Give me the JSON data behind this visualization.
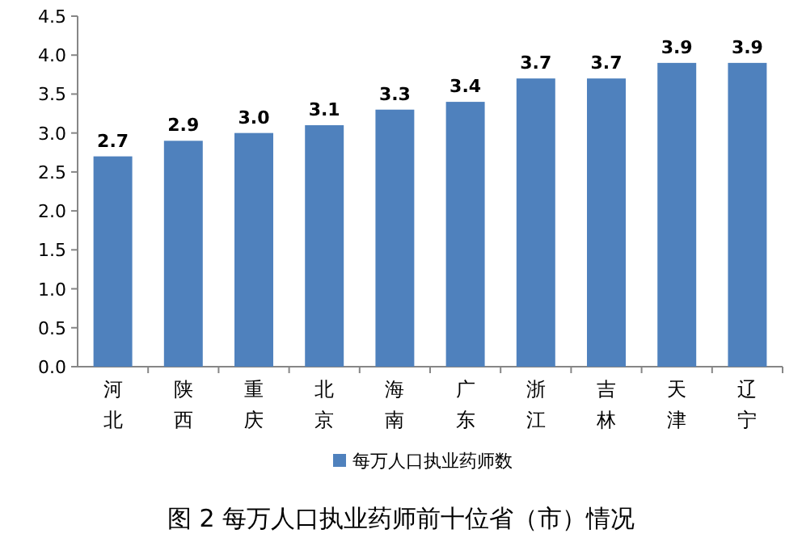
{
  "chart_data": {
    "type": "bar",
    "title": "图 2 每万人口执业药师前十位省（市）情况",
    "categories": [
      "河北",
      "陕西",
      "重庆",
      "北京",
      "海南",
      "广东",
      "浙江",
      "吉林",
      "天津",
      "辽宁"
    ],
    "series": [
      {
        "name": "每万人口执业药师数",
        "color": "#4f81bd",
        "values": [
          2.7,
          2.9,
          3.0,
          3.1,
          3.3,
          3.4,
          3.7,
          3.7,
          3.9,
          3.9
        ],
        "value_labels": [
          "2.7",
          "2.9",
          "3.0",
          "3.1",
          "3.3",
          "3.4",
          "3.7",
          "3.7",
          "3.9",
          "3.9"
        ]
      }
    ],
    "ylim": [
      0,
      4.5
    ],
    "yticks": [
      {
        "value": 0,
        "label": "0.0"
      },
      {
        "value": 0.5,
        "label": "0.5"
      },
      {
        "value": 1,
        "label": "1.0"
      },
      {
        "value": 1.5,
        "label": "1.5"
      },
      {
        "value": 2,
        "label": "2.0"
      },
      {
        "value": 2.5,
        "label": "2.5"
      },
      {
        "value": 3,
        "label": "3.0"
      },
      {
        "value": 3.5,
        "label": "3.5"
      },
      {
        "value": 4,
        "label": "4.0"
      },
      {
        "value": 4.5,
        "label": "4.5"
      }
    ],
    "legend": "bottom"
  }
}
